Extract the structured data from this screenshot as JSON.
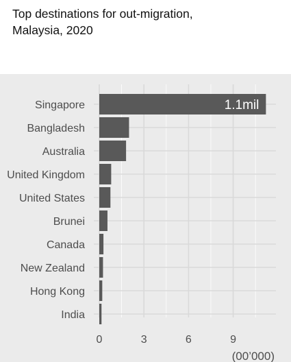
{
  "title_line1": "Top destinations for out-migration,",
  "title_line2": "Malaysia, 2020",
  "chart_data": {
    "type": "bar",
    "orientation": "horizontal",
    "title": "Top destinations for out-migration, Malaysia, 2020",
    "categories": [
      "Singapore",
      "Bangladesh",
      "Australia",
      "United Kingdom",
      "United States",
      "Brunei",
      "Canada",
      "New Zealand",
      "Hong Kong",
      "India"
    ],
    "values": [
      11.2,
      2.0,
      1.8,
      0.8,
      0.75,
      0.55,
      0.28,
      0.25,
      0.2,
      0.15
    ],
    "xlabel": "(00’000)",
    "ylabel": "",
    "xlim": [
      0,
      11.8
    ],
    "xticks": [
      0,
      3,
      6,
      9
    ],
    "xtick_labels": [
      "0",
      "3",
      "6",
      "9"
    ],
    "data_labels": [
      {
        "category": "Singapore",
        "text": "1.1mil"
      }
    ],
    "grid": true,
    "legend": "none",
    "colors": {
      "bar": "#595959",
      "panel": "#ebebeb",
      "grid": "#ffffff",
      "label": "#ffffff",
      "text": "#4d4d4d"
    }
  }
}
